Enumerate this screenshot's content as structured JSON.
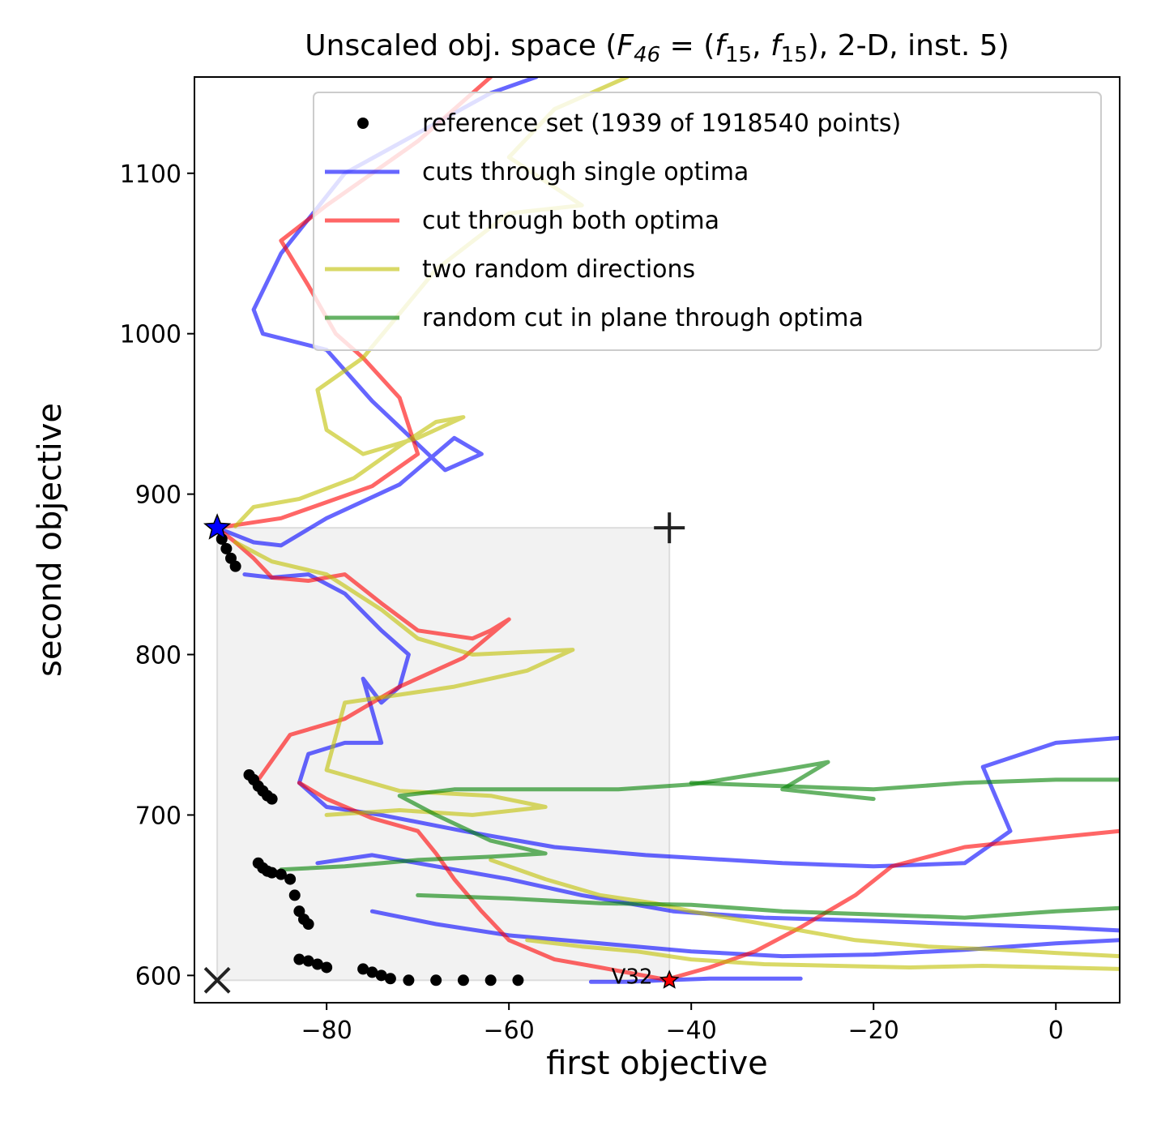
{
  "chart_data": {
    "type": "line",
    "title": {
      "prefix": "Unscaled obj. space (",
      "F": "F",
      "F_sub": "46",
      "eq": " = (",
      "f1": "f",
      "f1_sub": "15",
      "comma": ", ",
      "f2": "f",
      "f2_sub": "15",
      "suffix": "), 2-D, inst. 5)"
    },
    "xlabel": "first objective",
    "ylabel": "second objective",
    "xlim": [
      -94.5,
      7
    ],
    "ylim": [
      583,
      1160
    ],
    "xticks": [
      -80,
      -60,
      -40,
      -20,
      0
    ],
    "xtick_labels": [
      "−80",
      "−60",
      "−40",
      "−20",
      "0"
    ],
    "yticks": [
      600,
      700,
      800,
      900,
      1000,
      1100
    ],
    "ytick_labels": [
      "600",
      "700",
      "800",
      "900",
      "1000",
      "1100"
    ],
    "legend_placement": "upper right",
    "legend": [
      {
        "label": "reference set (1939 of 1918540 points)",
        "marker": "dot",
        "color": "#000000"
      },
      {
        "label": "cuts through single optima",
        "marker": "line",
        "color": "#0000ff"
      },
      {
        "label": "cut through both optima",
        "marker": "line",
        "color": "#ff0000"
      },
      {
        "label": "two random directions",
        "marker": "line",
        "color": "#bfbf00"
      },
      {
        "label": "random cut in plane through optima",
        "marker": "line",
        "color": "#008000"
      }
    ],
    "region": {
      "x": [
        -92,
        -42.4
      ],
      "y": [
        597,
        879
      ]
    },
    "markers": [
      {
        "name": "ideal-point",
        "symbol": "x",
        "x": -92,
        "y": 597
      },
      {
        "name": "nadir-point",
        "symbol": "+",
        "x": -42.4,
        "y": 879
      },
      {
        "name": "optimum-1",
        "symbol": "star",
        "x": -92,
        "y": 879,
        "color": "#0000ff"
      },
      {
        "name": "optimum-2",
        "symbol": "star",
        "x": -42.4,
        "y": 597,
        "color": "#ff0000"
      }
    ],
    "annotation": {
      "text": "V32",
      "x": -46.5,
      "y": 600
    },
    "reference_set": [
      [
        -91.5,
        872
      ],
      [
        -91,
        866
      ],
      [
        -90.5,
        860
      ],
      [
        -90,
        855
      ],
      [
        -88.5,
        725
      ],
      [
        -88,
        722
      ],
      [
        -87.5,
        718
      ],
      [
        -87,
        715
      ],
      [
        -86.5,
        712
      ],
      [
        -86,
        710
      ],
      [
        -87.5,
        670
      ],
      [
        -87,
        667
      ],
      [
        -86.5,
        665
      ],
      [
        -86,
        664
      ],
      [
        -85,
        663
      ],
      [
        -84,
        660
      ],
      [
        -83.5,
        650
      ],
      [
        -83,
        640
      ],
      [
        -82.5,
        635
      ],
      [
        -82,
        632
      ],
      [
        -83,
        610
      ],
      [
        -82,
        609
      ],
      [
        -81,
        607
      ],
      [
        -80,
        605
      ],
      [
        -76,
        604
      ],
      [
        -75,
        602
      ],
      [
        -74,
        600
      ],
      [
        -73,
        598
      ],
      [
        -71,
        597
      ],
      [
        -68,
        597
      ],
      [
        -65,
        597
      ],
      [
        -62,
        597
      ],
      [
        -59,
        597
      ]
    ],
    "series": [
      {
        "name": "cuts through single optima",
        "color": "#0000ff",
        "values": [
          [
            -92,
            879
          ],
          [
            -88,
            870
          ],
          [
            -85,
            868
          ],
          [
            -80,
            885
          ],
          [
            -72,
            906
          ],
          [
            -66,
            935
          ],
          [
            -63,
            925
          ],
          [
            -67,
            915
          ],
          [
            -75,
            958
          ],
          [
            -80,
            990
          ],
          [
            -87,
            1000
          ],
          [
            -88,
            1015
          ],
          [
            -85,
            1050
          ],
          [
            -78,
            1100
          ],
          [
            -70,
            1125
          ],
          [
            -62,
            1150
          ],
          [
            -57,
            1160
          ]
        ]
      },
      {
        "name": "cuts through single optima",
        "color": "#0000ff",
        "values": [
          [
            -89,
            850
          ],
          [
            -86,
            848
          ],
          [
            -82,
            850
          ],
          [
            -78,
            838
          ],
          [
            -74,
            815
          ],
          [
            -71,
            800
          ],
          [
            -72,
            780
          ],
          [
            -74,
            770
          ],
          [
            -76,
            785
          ],
          [
            -74,
            745
          ],
          [
            -78,
            745
          ],
          [
            -82,
            738
          ],
          [
            -83,
            720
          ],
          [
            -80,
            705
          ],
          [
            -74,
            700
          ],
          [
            -65,
            690
          ],
          [
            -55,
            680
          ],
          [
            -45,
            675
          ],
          [
            -30,
            670
          ],
          [
            -20,
            668
          ],
          [
            -10,
            670
          ],
          [
            -5,
            690
          ],
          [
            -8,
            730
          ],
          [
            0,
            745
          ],
          [
            7,
            748
          ]
        ]
      },
      {
        "name": "cuts through single optima",
        "color": "#0000ff",
        "values": [
          [
            -81,
            670
          ],
          [
            -75,
            675
          ],
          [
            -68,
            668
          ],
          [
            -60,
            660
          ],
          [
            -52,
            650
          ],
          [
            -42,
            640
          ],
          [
            -32,
            636
          ],
          [
            -20,
            634
          ],
          [
            -10,
            632
          ],
          [
            0,
            630
          ],
          [
            7,
            628
          ]
        ]
      },
      {
        "name": "cuts through single optima",
        "color": "#0000ff",
        "values": [
          [
            -75,
            640
          ],
          [
            -68,
            632
          ],
          [
            -60,
            625
          ],
          [
            -50,
            620
          ],
          [
            -40,
            615
          ],
          [
            -30,
            612
          ],
          [
            -20,
            613
          ],
          [
            -10,
            616
          ],
          [
            0,
            620
          ],
          [
            7,
            622
          ]
        ]
      },
      {
        "name": "cuts through single optima",
        "color": "#0000ff",
        "values": [
          [
            -51,
            596
          ],
          [
            -47,
            596
          ],
          [
            -43,
            597
          ],
          [
            -38,
            598
          ],
          [
            -33,
            598
          ],
          [
            -28,
            598
          ]
        ]
      },
      {
        "name": "cut through both optima",
        "color": "#ff0000",
        "values": [
          [
            -92,
            879
          ],
          [
            -90,
            870
          ],
          [
            -88,
            860
          ],
          [
            -86,
            848
          ],
          [
            -82,
            846
          ],
          [
            -78,
            850
          ],
          [
            -74,
            832
          ],
          [
            -70,
            815
          ],
          [
            -64,
            810
          ],
          [
            -62,
            815
          ],
          [
            -60,
            822
          ],
          [
            -65,
            798
          ],
          [
            -72,
            780
          ],
          [
            -78,
            760
          ],
          [
            -84,
            750
          ],
          [
            -87.5,
            722
          ]
        ]
      },
      {
        "name": "cut through both optima",
        "color": "#ff0000",
        "values": [
          [
            -92,
            879
          ],
          [
            -85,
            885
          ],
          [
            -75,
            905
          ],
          [
            -70,
            925
          ],
          [
            -72,
            960
          ],
          [
            -76,
            985
          ],
          [
            -79,
            1000
          ],
          [
            -82,
            1030
          ],
          [
            -85,
            1058
          ],
          [
            -80,
            1080
          ],
          [
            -75,
            1100
          ],
          [
            -70,
            1120
          ],
          [
            -65,
            1145
          ],
          [
            -62,
            1160
          ]
        ]
      },
      {
        "name": "cut through both optima",
        "color": "#ff0000",
        "values": [
          [
            -83,
            720
          ],
          [
            -80,
            710
          ],
          [
            -75,
            698
          ],
          [
            -70,
            690
          ],
          [
            -68,
            676
          ],
          [
            -66,
            660
          ],
          [
            -63,
            640
          ],
          [
            -60,
            622
          ],
          [
            -55,
            610
          ],
          [
            -50,
            605
          ],
          [
            -42.4,
            597
          ]
        ]
      },
      {
        "name": "cut through both optima",
        "color": "#ff0000",
        "values": [
          [
            -43,
            597
          ],
          [
            -38,
            605
          ],
          [
            -33,
            615
          ],
          [
            -28,
            630
          ],
          [
            -22,
            650
          ],
          [
            -18,
            668
          ],
          [
            -10,
            680
          ],
          [
            0,
            686
          ],
          [
            7,
            690
          ]
        ]
      },
      {
        "name": "two random directions",
        "color": "#bfbf00",
        "values": [
          [
            -90,
            880
          ],
          [
            -88,
            892
          ],
          [
            -83,
            897
          ],
          [
            -77,
            910
          ],
          [
            -72,
            930
          ],
          [
            -68,
            945
          ],
          [
            -65,
            948
          ],
          [
            -70,
            935
          ],
          [
            -76,
            925
          ],
          [
            -80,
            940
          ],
          [
            -81,
            965
          ],
          [
            -76,
            985
          ],
          [
            -68,
            1040
          ],
          [
            -60,
            1075
          ],
          [
            -52,
            1080
          ],
          [
            -60,
            1110
          ],
          [
            -55,
            1140
          ],
          [
            -47,
            1160
          ]
        ]
      },
      {
        "name": "two random directions",
        "color": "#bfbf00",
        "values": [
          [
            -90,
            870
          ],
          [
            -86,
            858
          ],
          [
            -80,
            850
          ],
          [
            -74,
            828
          ],
          [
            -70,
            810
          ],
          [
            -64,
            800
          ],
          [
            -53,
            803
          ],
          [
            -58,
            790
          ],
          [
            -66,
            780
          ],
          [
            -72,
            775
          ],
          [
            -78,
            770
          ],
          [
            -80,
            728
          ],
          [
            -72,
            715
          ],
          [
            -62,
            712
          ],
          [
            -56,
            705
          ],
          [
            -64,
            700
          ],
          [
            -72,
            703
          ],
          [
            -80,
            700
          ]
        ]
      },
      {
        "name": "two random directions",
        "color": "#bfbf00",
        "values": [
          [
            -62,
            672
          ],
          [
            -56,
            660
          ],
          [
            -50,
            650
          ],
          [
            -44,
            645
          ],
          [
            -40,
            640
          ],
          [
            -34,
            634
          ],
          [
            -28,
            628
          ],
          [
            -22,
            622
          ],
          [
            -14,
            618
          ],
          [
            -6,
            616
          ],
          [
            0,
            614
          ],
          [
            7,
            612
          ]
        ]
      },
      {
        "name": "two random directions",
        "color": "#bfbf00",
        "values": [
          [
            -58,
            622
          ],
          [
            -52,
            618
          ],
          [
            -46,
            615
          ],
          [
            -40,
            610
          ],
          [
            -32,
            607
          ],
          [
            -24,
            606
          ],
          [
            -16,
            605
          ],
          [
            -8,
            606
          ],
          [
            0,
            605
          ],
          [
            7,
            604
          ]
        ]
      },
      {
        "name": "random cut in plane through optima",
        "color": "#008000",
        "values": [
          [
            -85,
            666
          ],
          [
            -78,
            668
          ],
          [
            -70,
            672
          ],
          [
            -62,
            674
          ],
          [
            -56,
            676
          ],
          [
            -62,
            684
          ],
          [
            -68,
            700
          ],
          [
            -72,
            712
          ],
          [
            -66,
            716
          ],
          [
            -56,
            716
          ],
          [
            -48,
            716
          ],
          [
            -40,
            719
          ],
          [
            -30,
            728
          ],
          [
            -25,
            733
          ],
          [
            -30,
            716
          ],
          [
            -20,
            710
          ]
        ]
      },
      {
        "name": "random cut in plane through optima",
        "color": "#008000",
        "values": [
          [
            -70,
            650
          ],
          [
            -60,
            648
          ],
          [
            -50,
            645
          ],
          [
            -40,
            644
          ],
          [
            -30,
            640
          ],
          [
            -20,
            638
          ],
          [
            -10,
            636
          ],
          [
            0,
            640
          ],
          [
            7,
            642
          ]
        ]
      },
      {
        "name": "random cut in plane through optima",
        "color": "#008000",
        "values": [
          [
            -40,
            720
          ],
          [
            -30,
            718
          ],
          [
            -20,
            716
          ],
          [
            -10,
            720
          ],
          [
            0,
            722
          ],
          [
            7,
            722
          ]
        ]
      }
    ]
  }
}
